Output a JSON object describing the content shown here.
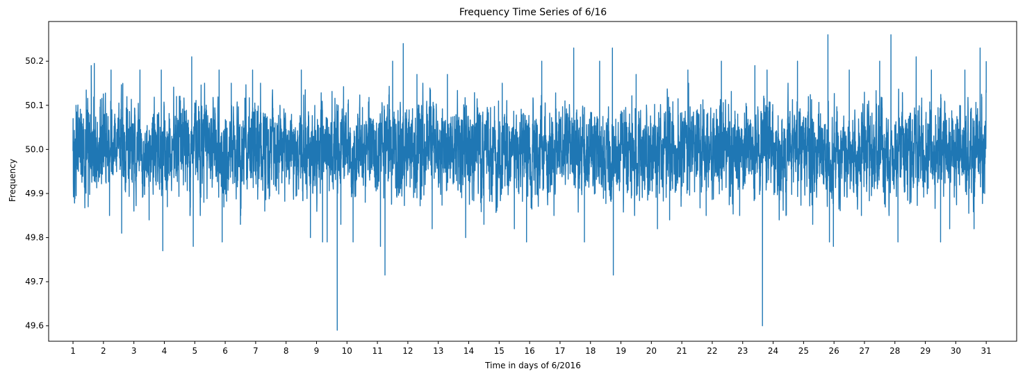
{
  "chart_data": {
    "type": "line",
    "title": "Frequency Time Series of 6/16",
    "xlabel": "Time in days of 6/2016",
    "ylabel": "Frequency",
    "xlim": [
      0.2,
      32.0
    ],
    "ylim": [
      49.565,
      50.29
    ],
    "grid": false,
    "legend": "none",
    "color": "#1f77b4",
    "x_ticks": [
      "1",
      "2",
      "3",
      "4",
      "5",
      "6",
      "7",
      "8",
      "9",
      "10",
      "11",
      "12",
      "13",
      "14",
      "15",
      "16",
      "17",
      "18",
      "19",
      "20",
      "21",
      "22",
      "23",
      "24",
      "25",
      "26",
      "27",
      "28",
      "29",
      "30",
      "31"
    ],
    "y_ticks": [
      "49.6",
      "49.7",
      "49.8",
      "49.9",
      "50.0",
      "50.1",
      "50.2"
    ],
    "series": [
      {
        "base": 50.0,
        "typical_range": [
          49.87,
          50.13
        ],
        "points": [
          [
            1.0,
            50.0
          ],
          [
            1.05,
            49.88
          ],
          [
            1.1,
            50.1
          ],
          [
            1.5,
            49.87
          ],
          [
            1.6,
            50.19
          ],
          [
            1.7,
            50.195
          ],
          [
            2.2,
            49.85
          ],
          [
            2.25,
            50.18
          ],
          [
            2.6,
            49.81
          ],
          [
            3.0,
            49.86
          ],
          [
            3.2,
            50.18
          ],
          [
            3.5,
            49.84
          ],
          [
            3.9,
            50.18
          ],
          [
            3.95,
            49.77
          ],
          [
            4.1,
            49.87
          ],
          [
            4.4,
            50.12
          ],
          [
            4.9,
            50.21
          ],
          [
            4.95,
            49.78
          ],
          [
            5.3,
            49.88
          ],
          [
            5.8,
            50.18
          ],
          [
            5.9,
            49.79
          ],
          [
            6.2,
            50.15
          ],
          [
            6.5,
            49.83
          ],
          [
            6.9,
            50.18
          ],
          [
            7.3,
            49.86
          ],
          [
            7.8,
            50.1
          ],
          [
            8.5,
            50.18
          ],
          [
            8.8,
            49.8
          ],
          [
            9.2,
            49.79
          ],
          [
            9.35,
            49.79
          ],
          [
            9.6,
            50.07
          ],
          [
            9.68,
            49.59
          ],
          [
            9.8,
            49.83
          ],
          [
            10.2,
            49.79
          ],
          [
            10.6,
            49.88
          ],
          [
            11.1,
            49.78
          ],
          [
            11.25,
            49.715
          ],
          [
            11.5,
            50.2
          ],
          [
            11.85,
            50.24
          ],
          [
            12.3,
            50.17
          ],
          [
            12.8,
            49.82
          ],
          [
            13.3,
            50.17
          ],
          [
            13.9,
            49.8
          ],
          [
            14.5,
            49.83
          ],
          [
            15.1,
            50.15
          ],
          [
            15.5,
            49.82
          ],
          [
            15.9,
            49.79
          ],
          [
            16.4,
            50.2
          ],
          [
            16.8,
            49.85
          ],
          [
            17.45,
            50.23
          ],
          [
            17.8,
            49.79
          ],
          [
            18.3,
            50.2
          ],
          [
            18.72,
            50.23
          ],
          [
            18.75,
            49.715
          ],
          [
            19.2,
            50.05
          ],
          [
            19.5,
            50.17
          ],
          [
            20.2,
            49.82
          ],
          [
            20.6,
            49.84
          ],
          [
            21.2,
            50.18
          ],
          [
            21.8,
            49.85
          ],
          [
            22.3,
            50.2
          ],
          [
            22.9,
            49.85
          ],
          [
            23.4,
            50.19
          ],
          [
            23.65,
            49.6
          ],
          [
            23.8,
            50.18
          ],
          [
            24.2,
            49.84
          ],
          [
            24.8,
            50.2
          ],
          [
            25.3,
            49.83
          ],
          [
            25.8,
            50.26
          ],
          [
            25.85,
            49.79
          ],
          [
            25.98,
            49.78
          ],
          [
            26.5,
            50.18
          ],
          [
            26.9,
            49.85
          ],
          [
            27.5,
            50.2
          ],
          [
            27.87,
            50.26
          ],
          [
            28.1,
            49.79
          ],
          [
            28.7,
            50.21
          ],
          [
            29.2,
            50.18
          ],
          [
            29.5,
            49.79
          ],
          [
            29.8,
            49.82
          ],
          [
            30.3,
            50.18
          ],
          [
            30.6,
            49.82
          ],
          [
            30.8,
            50.23
          ],
          [
            30.95,
            49.9
          ],
          [
            31.0,
            50.2
          ]
        ]
      }
    ]
  }
}
